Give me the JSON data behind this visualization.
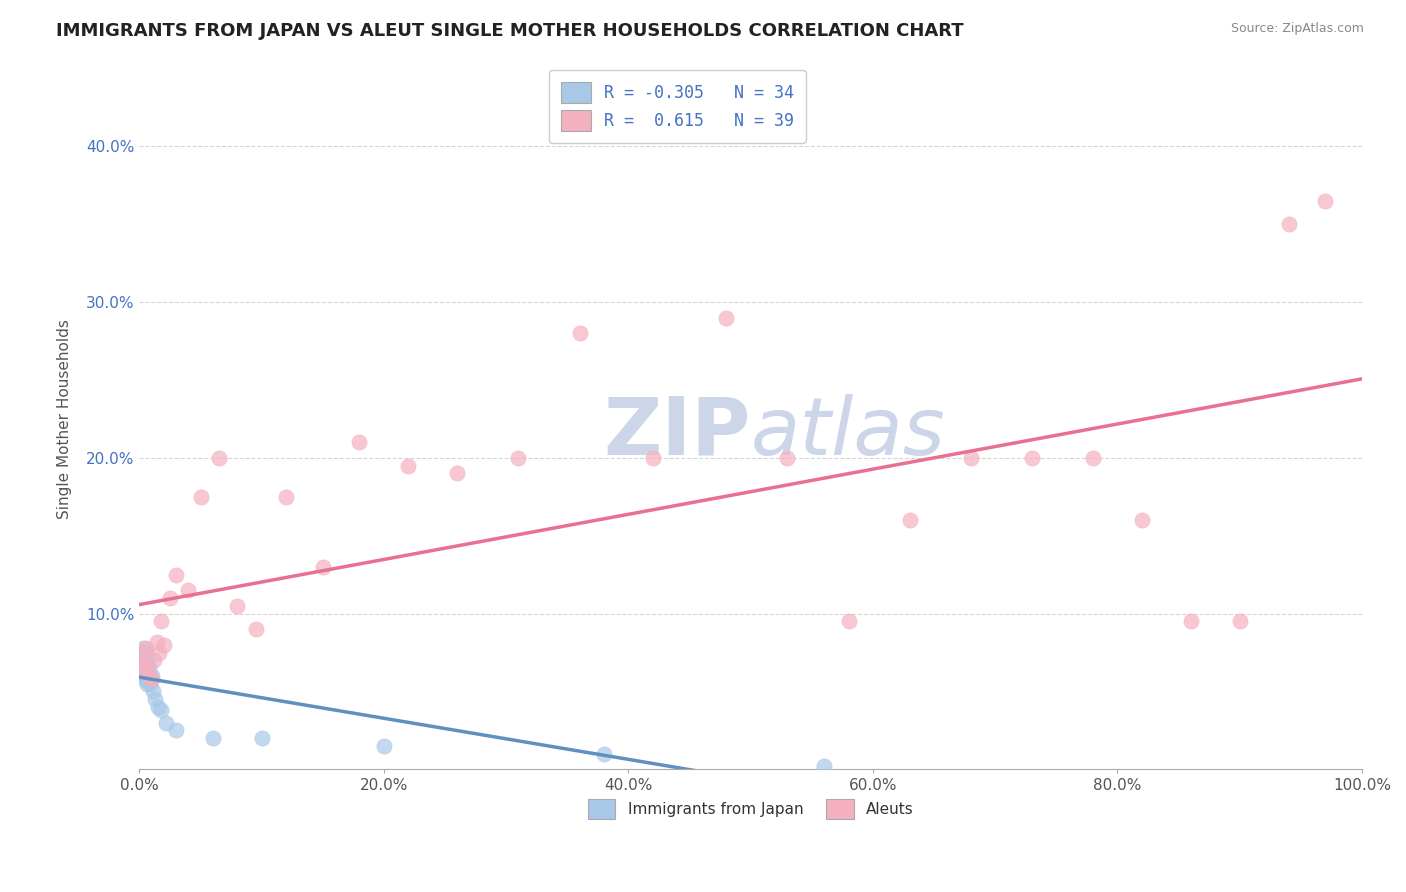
{
  "title": "IMMIGRANTS FROM JAPAN VS ALEUT SINGLE MOTHER HOUSEHOLDS CORRELATION CHART",
  "source": "Source: ZipAtlas.com",
  "ylabel": "Single Mother Households",
  "xlim": [
    0,
    1.0
  ],
  "ylim": [
    0,
    0.45
  ],
  "xticks": [
    0.0,
    0.2,
    0.4,
    0.6,
    0.8,
    1.0
  ],
  "xtick_labels": [
    "0.0%",
    "20.0%",
    "40.0%",
    "60.0%",
    "80.0%",
    "100.0%"
  ],
  "yticks": [
    0.0,
    0.1,
    0.2,
    0.3,
    0.4
  ],
  "ytick_labels": [
    "",
    "10.0%",
    "20.0%",
    "30.0%",
    "40.0%"
  ],
  "color_japan": "#a8c8e8",
  "color_aleut": "#f5b0c0",
  "color_japan_line": "#6090c0",
  "color_aleut_line": "#e87090",
  "japan_x": [
    0.001,
    0.001,
    0.002,
    0.002,
    0.002,
    0.003,
    0.003,
    0.003,
    0.003,
    0.004,
    0.004,
    0.004,
    0.005,
    0.005,
    0.005,
    0.006,
    0.006,
    0.007,
    0.007,
    0.008,
    0.008,
    0.009,
    0.01,
    0.011,
    0.013,
    0.015,
    0.018,
    0.022,
    0.03,
    0.06,
    0.1,
    0.2,
    0.38,
    0.56
  ],
  "japan_y": [
    0.07,
    0.068,
    0.075,
    0.072,
    0.065,
    0.078,
    0.074,
    0.07,
    0.065,
    0.068,
    0.06,
    0.058,
    0.075,
    0.072,
    0.06,
    0.065,
    0.055,
    0.068,
    0.06,
    0.065,
    0.058,
    0.055,
    0.06,
    0.05,
    0.045,
    0.04,
    0.038,
    0.03,
    0.025,
    0.02,
    0.02,
    0.015,
    0.01,
    0.002
  ],
  "aleut_x": [
    0.002,
    0.003,
    0.004,
    0.005,
    0.006,
    0.008,
    0.01,
    0.012,
    0.014,
    0.016,
    0.018,
    0.02,
    0.025,
    0.03,
    0.04,
    0.05,
    0.065,
    0.08,
    0.095,
    0.12,
    0.15,
    0.18,
    0.22,
    0.26,
    0.31,
    0.36,
    0.42,
    0.48,
    0.53,
    0.58,
    0.63,
    0.68,
    0.73,
    0.78,
    0.82,
    0.86,
    0.9,
    0.94,
    0.97
  ],
  "aleut_y": [
    0.068,
    0.075,
    0.065,
    0.078,
    0.065,
    0.06,
    0.058,
    0.07,
    0.082,
    0.075,
    0.095,
    0.08,
    0.11,
    0.125,
    0.115,
    0.175,
    0.2,
    0.105,
    0.09,
    0.175,
    0.13,
    0.21,
    0.195,
    0.19,
    0.2,
    0.28,
    0.2,
    0.29,
    0.2,
    0.095,
    0.16,
    0.2,
    0.2,
    0.2,
    0.16,
    0.095,
    0.095,
    0.35,
    0.365
  ],
  "background_color": "#ffffff",
  "grid_color": "#cccccc",
  "watermark_color": "#cdd5e8"
}
